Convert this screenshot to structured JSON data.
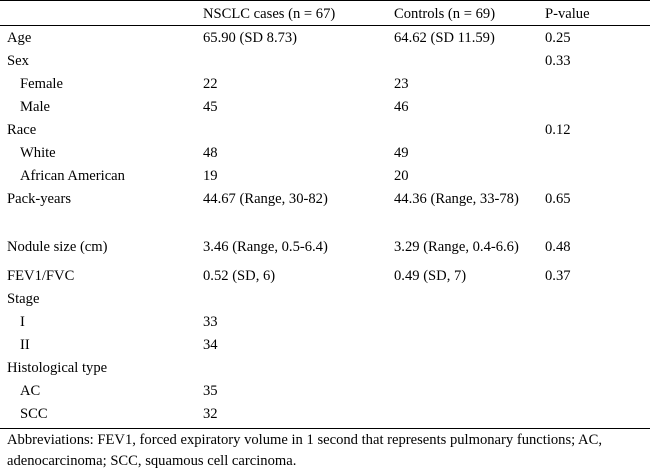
{
  "table": {
    "columns": [
      "",
      "NSCLC cases (n = 67)",
      "Controls (n = 69)",
      "P-value"
    ],
    "rows": [
      {
        "label": "Age",
        "indent": false,
        "cases": "65.90 (SD 8.73)",
        "controls": "64.62 (SD 11.59)",
        "p": "0.25"
      },
      {
        "label": "Sex",
        "indent": false,
        "cases": "",
        "controls": "",
        "p": "0.33"
      },
      {
        "label": "Female",
        "indent": true,
        "cases": "22",
        "controls": "23",
        "p": ""
      },
      {
        "label": "Male",
        "indent": true,
        "cases": "45",
        "controls": "46",
        "p": ""
      },
      {
        "label": "Race",
        "indent": false,
        "cases": "",
        "controls": "",
        "p": "0.12"
      },
      {
        "label": "White",
        "indent": true,
        "cases": "48",
        "controls": "49",
        "p": ""
      },
      {
        "label": "African American",
        "indent": true,
        "cases": "19",
        "controls": "20",
        "p": ""
      },
      {
        "label": "Pack-years",
        "indent": false,
        "cases": "44.67 (Range, 30-82)",
        "controls": "44.36 (Range, 33-78)",
        "p": "0.65"
      },
      {
        "label": "Nodule size (cm)",
        "indent": false,
        "cases": "3.46 (Range, 0.5-6.4)",
        "controls": "3.29 (Range, 0.4-6.6)",
        "p": "0.48"
      },
      {
        "label": "FEV1/FVC",
        "indent": false,
        "cases": "0.52 (SD, 6)",
        "controls": "0.49 (SD, 7)",
        "p": "0.37"
      },
      {
        "label": "Stage",
        "indent": false,
        "cases": "",
        "controls": "",
        "p": ""
      },
      {
        "label": "I",
        "indent": true,
        "cases": "33",
        "controls": "",
        "p": ""
      },
      {
        "label": "II",
        "indent": true,
        "cases": "34",
        "controls": "",
        "p": ""
      },
      {
        "label": "Histological type",
        "indent": false,
        "cases": "",
        "controls": "",
        "p": ""
      },
      {
        "label": "AC",
        "indent": true,
        "cases": "35",
        "controls": "",
        "p": ""
      },
      {
        "label": "SCC",
        "indent": true,
        "cases": "32",
        "controls": "",
        "p": ""
      }
    ]
  },
  "footnote": "Abbreviations: FEV1, forced expiratory volume in 1 second that represents pulmonary functions; AC, adenocarcinoma; SCC, squamous cell carcinoma."
}
